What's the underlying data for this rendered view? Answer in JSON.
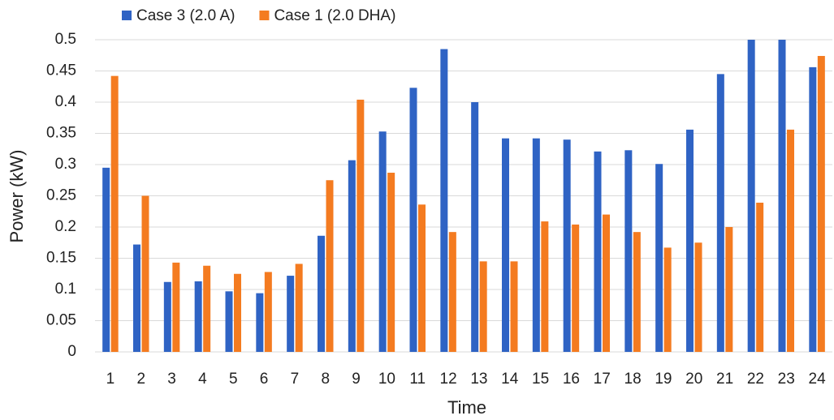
{
  "chart_data": {
    "type": "bar",
    "x_label": "Time",
    "y_label": "Power (kW)",
    "categories": [
      "1",
      "2",
      "3",
      "4",
      "5",
      "6",
      "7",
      "8",
      "9",
      "10",
      "11",
      "12",
      "13",
      "14",
      "15",
      "16",
      "17",
      "18",
      "19",
      "20",
      "21",
      "22",
      "23",
      "24"
    ],
    "series": [
      {
        "name": "Case 3 (2.0 A)",
        "color": "#2f63c4",
        "values": [
          0.295,
          0.172,
          0.112,
          0.113,
          0.097,
          0.094,
          0.122,
          0.186,
          0.307,
          0.353,
          0.423,
          0.485,
          0.4,
          0.342,
          0.342,
          0.34,
          0.321,
          0.323,
          0.301,
          0.356,
          0.445,
          0.5,
          0.5,
          0.456
        ]
      },
      {
        "name": "Case 1 (2.0 DHA)",
        "color": "#f47b20",
        "values": [
          0.442,
          0.25,
          0.143,
          0.138,
          0.125,
          0.128,
          0.141,
          0.275,
          0.404,
          0.287,
          0.236,
          0.192,
          0.145,
          0.145,
          0.209,
          0.204,
          0.22,
          0.192,
          0.167,
          0.175,
          0.2,
          0.239,
          0.356,
          0.474
        ]
      }
    ],
    "ylim": [
      0,
      0.5
    ],
    "yticks": [
      0,
      0.05,
      0.1,
      0.15,
      0.2,
      0.25,
      0.3,
      0.35,
      0.4,
      0.45,
      0.5
    ],
    "grid": true,
    "legend": "top-left"
  }
}
